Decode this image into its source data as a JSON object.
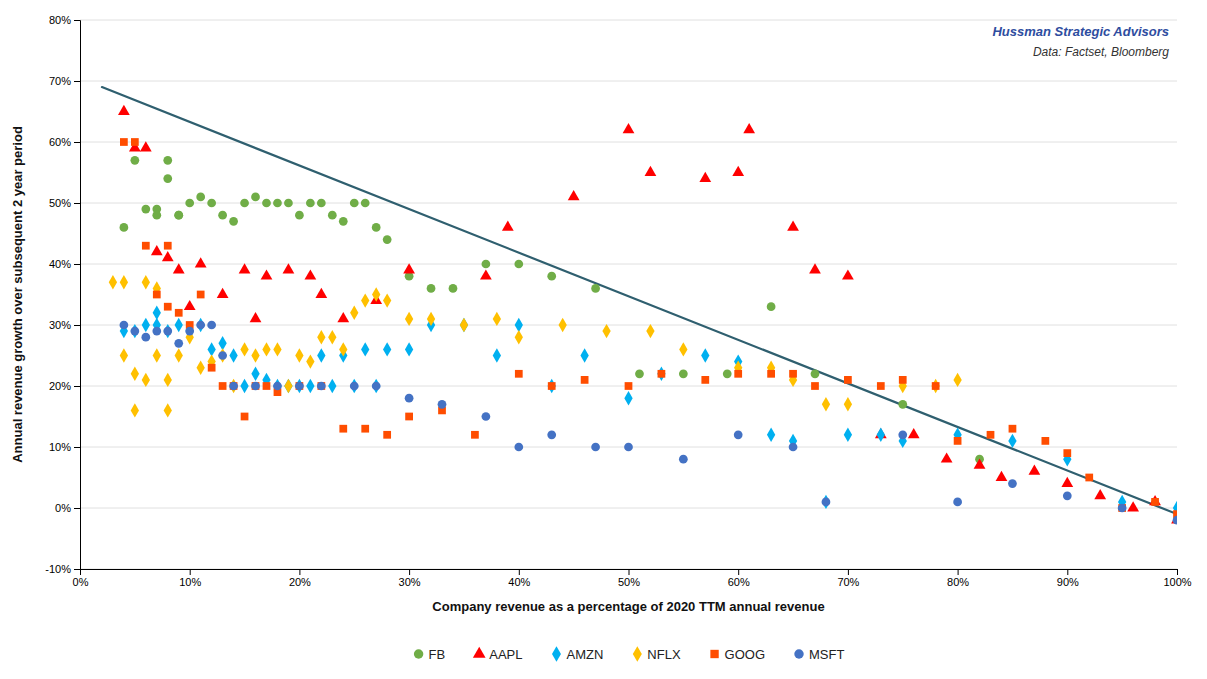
{
  "chart_data": {
    "type": "scatter",
    "annotations": [
      "Hussman Strategic Advisors",
      "Data: Factset, Bloomberg"
    ],
    "x_label": "Company revenue as a percentage of 2020 TTM annual revenue",
    "y_label": "Annual revenue growth over subsequent 2 year period",
    "xlim": [
      0,
      1.0
    ],
    "ylim": [
      -0.1,
      0.8
    ],
    "xticks": [
      {
        "value": 0,
        "label": "0%"
      },
      {
        "value": 0.1,
        "label": "10%"
      },
      {
        "value": 0.2,
        "label": "20%"
      },
      {
        "value": 0.3,
        "label": "30%"
      },
      {
        "value": 0.4,
        "label": "40%"
      },
      {
        "value": 0.5,
        "label": "50%"
      },
      {
        "value": 0.6,
        "label": "60%"
      },
      {
        "value": 0.7,
        "label": "70%"
      },
      {
        "value": 0.8,
        "label": "80%"
      },
      {
        "value": 0.9,
        "label": "90%"
      },
      {
        "value": 1.0,
        "label": "100%"
      }
    ],
    "yticks": [
      {
        "value": -0.1,
        "label": "-10%"
      },
      {
        "value": 0.0,
        "label": "0%"
      },
      {
        "value": 0.1,
        "label": "10%"
      },
      {
        "value": 0.2,
        "label": "20%"
      },
      {
        "value": 0.3,
        "label": "30%"
      },
      {
        "value": 0.4,
        "label": "40%"
      },
      {
        "value": 0.5,
        "label": "50%"
      },
      {
        "value": 0.6,
        "label": "60%"
      },
      {
        "value": 0.7,
        "label": "70%"
      },
      {
        "value": 0.8,
        "label": "80%"
      }
    ],
    "grid": "y",
    "legend": "bottom",
    "series": [
      {
        "type": "line",
        "color": "#2F5F6F",
        "x": [
          0.02,
          1.0
        ],
        "values": [
          0.69,
          -0.01
        ]
      },
      {
        "name": "FB",
        "color": "#70AD47",
        "marker": "circle",
        "x": [
          0.04,
          0.05,
          0.06,
          0.07,
          0.07,
          0.08,
          0.08,
          0.09,
          0.09,
          0.1,
          0.11,
          0.12,
          0.13,
          0.14,
          0.15,
          0.16,
          0.17,
          0.18,
          0.19,
          0.2,
          0.21,
          0.22,
          0.23,
          0.24,
          0.25,
          0.26,
          0.27,
          0.28,
          0.3,
          0.32,
          0.34,
          0.37,
          0.4,
          0.43,
          0.47,
          0.51,
          0.55,
          0.59,
          0.63,
          0.67,
          0.75,
          0.82
        ],
        "values": [
          0.46,
          0.57,
          0.49,
          0.49,
          0.48,
          0.57,
          0.54,
          0.48,
          0.48,
          0.5,
          0.51,
          0.5,
          0.48,
          0.47,
          0.5,
          0.51,
          0.5,
          0.5,
          0.5,
          0.48,
          0.5,
          0.5,
          0.48,
          0.47,
          0.5,
          0.5,
          0.46,
          0.44,
          0.38,
          0.36,
          0.36,
          0.4,
          0.4,
          0.38,
          0.36,
          0.22,
          0.22,
          0.22,
          0.33,
          0.22,
          0.17,
          0.08
        ]
      },
      {
        "name": "AAPL",
        "color": "#FF0000",
        "marker": "triangle",
        "x": [
          0.04,
          0.05,
          0.06,
          0.07,
          0.08,
          0.09,
          0.1,
          0.11,
          0.13,
          0.15,
          0.16,
          0.17,
          0.19,
          0.21,
          0.22,
          0.24,
          0.27,
          0.3,
          0.37,
          0.39,
          0.45,
          0.5,
          0.52,
          0.57,
          0.6,
          0.61,
          0.65,
          0.67,
          0.7,
          0.73,
          0.76,
          0.79,
          0.82,
          0.84,
          0.87,
          0.9,
          0.93,
          0.96,
          0.98,
          1.0
        ],
        "values": [
          0.65,
          0.59,
          0.59,
          0.42,
          0.41,
          0.39,
          0.33,
          0.4,
          0.35,
          0.39,
          0.31,
          0.38,
          0.39,
          0.38,
          0.35,
          0.31,
          0.34,
          0.39,
          0.38,
          0.46,
          0.51,
          0.62,
          0.55,
          0.54,
          0.55,
          0.62,
          0.46,
          0.39,
          0.38,
          0.12,
          0.12,
          0.08,
          0.07,
          0.05,
          0.06,
          0.04,
          0.02,
          0.0,
          0.01,
          -0.02
        ]
      },
      {
        "name": "AMZN",
        "color": "#00B0F0",
        "marker": "diamond",
        "x": [
          0.04,
          0.05,
          0.06,
          0.07,
          0.07,
          0.08,
          0.09,
          0.1,
          0.11,
          0.12,
          0.13,
          0.14,
          0.15,
          0.16,
          0.17,
          0.18,
          0.19,
          0.2,
          0.21,
          0.22,
          0.23,
          0.24,
          0.25,
          0.26,
          0.27,
          0.28,
          0.3,
          0.32,
          0.35,
          0.38,
          0.4,
          0.43,
          0.46,
          0.5,
          0.53,
          0.57,
          0.6,
          0.63,
          0.65,
          0.68,
          0.7,
          0.73,
          0.75,
          0.8,
          0.85,
          0.9,
          0.95,
          1.0
        ],
        "values": [
          0.29,
          0.29,
          0.3,
          0.3,
          0.32,
          0.29,
          0.3,
          0.29,
          0.3,
          0.26,
          0.27,
          0.25,
          0.2,
          0.22,
          0.21,
          0.2,
          0.2,
          0.2,
          0.2,
          0.25,
          0.2,
          0.25,
          0.2,
          0.26,
          0.2,
          0.26,
          0.26,
          0.3,
          0.3,
          0.25,
          0.3,
          0.2,
          0.25,
          0.18,
          0.22,
          0.25,
          0.24,
          0.12,
          0.11,
          0.01,
          0.12,
          0.12,
          0.11,
          0.12,
          0.11,
          0.08,
          0.01,
          0.0
        ]
      },
      {
        "name": "NFLX",
        "color": "#FFC000",
        "marker": "diamond",
        "x": [
          0.03,
          0.04,
          0.04,
          0.05,
          0.05,
          0.06,
          0.06,
          0.07,
          0.07,
          0.08,
          0.08,
          0.09,
          0.1,
          0.11,
          0.12,
          0.13,
          0.14,
          0.15,
          0.16,
          0.17,
          0.18,
          0.19,
          0.2,
          0.21,
          0.22,
          0.23,
          0.24,
          0.25,
          0.26,
          0.27,
          0.28,
          0.3,
          0.32,
          0.35,
          0.38,
          0.4,
          0.44,
          0.48,
          0.52,
          0.55,
          0.6,
          0.63,
          0.65,
          0.68,
          0.7,
          0.75,
          0.78,
          0.8
        ],
        "values": [
          0.37,
          0.37,
          0.25,
          0.22,
          0.16,
          0.37,
          0.21,
          0.36,
          0.25,
          0.16,
          0.21,
          0.25,
          0.28,
          0.23,
          0.24,
          0.25,
          0.2,
          0.26,
          0.25,
          0.26,
          0.26,
          0.2,
          0.25,
          0.24,
          0.28,
          0.28,
          0.26,
          0.32,
          0.34,
          0.35,
          0.34,
          0.31,
          0.31,
          0.3,
          0.31,
          0.28,
          0.3,
          0.29,
          0.29,
          0.26,
          0.23,
          0.23,
          0.21,
          0.17,
          0.17,
          0.2,
          0.2,
          0.21
        ]
      },
      {
        "name": "GOOG",
        "color": "#FF4D00",
        "marker": "square",
        "x": [
          0.04,
          0.05,
          0.06,
          0.07,
          0.08,
          0.08,
          0.09,
          0.1,
          0.11,
          0.12,
          0.13,
          0.14,
          0.15,
          0.16,
          0.17,
          0.18,
          0.2,
          0.22,
          0.24,
          0.26,
          0.28,
          0.3,
          0.33,
          0.36,
          0.4,
          0.43,
          0.46,
          0.5,
          0.53,
          0.57,
          0.6,
          0.63,
          0.65,
          0.67,
          0.7,
          0.73,
          0.75,
          0.78,
          0.8,
          0.83,
          0.85,
          0.88,
          0.9,
          0.92,
          0.95,
          0.98,
          1.0
        ],
        "values": [
          0.6,
          0.6,
          0.43,
          0.35,
          0.43,
          0.33,
          0.32,
          0.3,
          0.35,
          0.23,
          0.2,
          0.2,
          0.15,
          0.2,
          0.2,
          0.19,
          0.2,
          0.2,
          0.13,
          0.13,
          0.12,
          0.15,
          0.16,
          0.12,
          0.22,
          0.2,
          0.21,
          0.2,
          0.22,
          0.21,
          0.22,
          0.22,
          0.22,
          0.2,
          0.21,
          0.2,
          0.21,
          0.2,
          0.11,
          0.12,
          0.13,
          0.11,
          0.09,
          0.05,
          0.0,
          0.01,
          -0.01
        ]
      },
      {
        "name": "MSFT",
        "color": "#4472C4",
        "marker": "circle",
        "x": [
          0.04,
          0.05,
          0.06,
          0.07,
          0.08,
          0.09,
          0.1,
          0.11,
          0.12,
          0.13,
          0.14,
          0.16,
          0.18,
          0.2,
          0.22,
          0.25,
          0.27,
          0.3,
          0.33,
          0.37,
          0.4,
          0.43,
          0.47,
          0.5,
          0.55,
          0.6,
          0.65,
          0.68,
          0.75,
          0.8,
          0.85,
          0.9,
          0.95,
          1.0
        ],
        "values": [
          0.3,
          0.29,
          0.28,
          0.29,
          0.29,
          0.27,
          0.29,
          0.3,
          0.3,
          0.25,
          0.2,
          0.2,
          0.2,
          0.2,
          0.2,
          0.2,
          0.2,
          0.18,
          0.17,
          0.15,
          0.1,
          0.12,
          0.1,
          0.1,
          0.08,
          0.12,
          0.1,
          0.01,
          0.12,
          0.01,
          0.04,
          0.02,
          0.0,
          -0.02
        ]
      }
    ]
  }
}
